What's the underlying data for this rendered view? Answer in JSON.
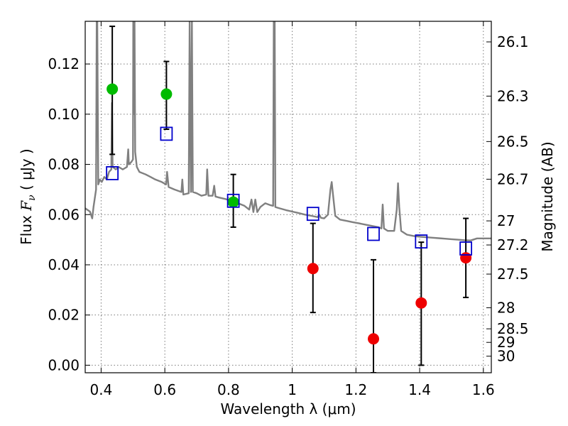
{
  "chart_data": {
    "type": "scatter",
    "title": "",
    "xlabel": "Wavelength  λ (μm)",
    "ylabel_left": {
      "pre": "Flux ",
      "var": "F",
      "sub": "ν",
      "post": "  ( μJy )"
    },
    "ylabel_right": "Magnitude (AB)",
    "xlim": [
      0.35,
      1.625
    ],
    "ylim": [
      -0.003,
      0.137
    ],
    "grid": true,
    "x_ticks": [
      0.4,
      0.6,
      0.8,
      1.0,
      1.2,
      1.4,
      1.6
    ],
    "x_tick_labels": [
      "0.4",
      "0.6",
      "0.8",
      "1",
      "1.2",
      "1.4",
      "1.6"
    ],
    "y_ticks": [
      0.0,
      0.02,
      0.04,
      0.06,
      0.08,
      0.1,
      0.12
    ],
    "y_tick_labels": [
      "0.00",
      "0.02",
      "0.04",
      "0.06",
      "0.08",
      "0.10",
      "0.12"
    ],
    "right_ticks": [
      {
        "label": "26.1",
        "flux": 0.1288
      },
      {
        "label": "26.3",
        "flux": 0.1072
      },
      {
        "label": "26.5",
        "flux": 0.0891
      },
      {
        "label": "26.7",
        "flux": 0.0741
      },
      {
        "label": "27",
        "flux": 0.0575
      },
      {
        "label": "27.2",
        "flux": 0.0479
      },
      {
        "label": "27.5",
        "flux": 0.0363
      },
      {
        "label": "28",
        "flux": 0.0229
      },
      {
        "label": "28.5",
        "flux": 0.0145
      },
      {
        "label": "29",
        "flux": 0.0091
      },
      {
        "label": "30",
        "flux": 0.0036
      }
    ],
    "colors": {
      "spectrum": "#808080",
      "model_square": "#0000cc",
      "detection": "#00bb00",
      "nondetection": "#ee0000",
      "errorbar": "#000000",
      "grid": "#7a7a7a"
    },
    "series": [
      {
        "marker": "circle-green",
        "points": [
          {
            "x": 0.435,
            "y": 0.11,
            "lo": 0.084,
            "hi": 0.135
          },
          {
            "x": 0.605,
            "y": 0.108,
            "lo": 0.094,
            "hi": 0.121
          },
          {
            "x": 0.815,
            "y": 0.065,
            "lo": 0.055,
            "hi": 0.076
          }
        ]
      },
      {
        "marker": "circle-red",
        "points": [
          {
            "x": 1.065,
            "y": 0.0385,
            "lo": 0.021,
            "hi": 0.0565
          },
          {
            "x": 1.255,
            "y": 0.0105,
            "lo": -0.003,
            "hi": 0.042
          },
          {
            "x": 1.405,
            "y": 0.0248,
            "lo": 0.0,
            "hi": 0.049
          },
          {
            "x": 1.545,
            "y": 0.0428,
            "lo": 0.027,
            "hi": 0.0585
          }
        ]
      },
      {
        "marker": "square-blue",
        "points": [
          {
            "x": 0.435,
            "y": 0.0765
          },
          {
            "x": 0.605,
            "y": 0.0922
          },
          {
            "x": 0.815,
            "y": 0.0655
          },
          {
            "x": 1.065,
            "y": 0.0603
          },
          {
            "x": 1.255,
            "y": 0.0523
          },
          {
            "x": 1.405,
            "y": 0.0493
          },
          {
            "x": 1.545,
            "y": 0.0465
          }
        ]
      }
    ],
    "spectrum": [
      [
        0.35,
        0.0625
      ],
      [
        0.365,
        0.0612
      ],
      [
        0.372,
        0.0585
      ],
      [
        0.376,
        0.063
      ],
      [
        0.384,
        0.07
      ],
      [
        0.386,
        0.137
      ],
      [
        0.388,
        0.137
      ],
      [
        0.391,
        0.072
      ],
      [
        0.396,
        0.074
      ],
      [
        0.402,
        0.073
      ],
      [
        0.41,
        0.075
      ],
      [
        0.418,
        0.074
      ],
      [
        0.425,
        0.077
      ],
      [
        0.432,
        0.078
      ],
      [
        0.434,
        0.1045
      ],
      [
        0.436,
        0.079
      ],
      [
        0.446,
        0.078
      ],
      [
        0.455,
        0.079
      ],
      [
        0.468,
        0.078
      ],
      [
        0.481,
        0.079
      ],
      [
        0.485,
        0.086
      ],
      [
        0.487,
        0.08
      ],
      [
        0.495,
        0.081
      ],
      [
        0.5,
        0.082
      ],
      [
        0.501,
        0.137
      ],
      [
        0.503,
        0.1
      ],
      [
        0.505,
        0.137
      ],
      [
        0.507,
        0.085
      ],
      [
        0.512,
        0.079
      ],
      [
        0.52,
        0.077
      ],
      [
        0.54,
        0.076
      ],
      [
        0.555,
        0.075
      ],
      [
        0.57,
        0.074
      ],
      [
        0.59,
        0.073
      ],
      [
        0.604,
        0.072
      ],
      [
        0.607,
        0.077
      ],
      [
        0.612,
        0.071
      ],
      [
        0.63,
        0.07
      ],
      [
        0.652,
        0.069
      ],
      [
        0.655,
        0.074
      ],
      [
        0.658,
        0.068
      ],
      [
        0.675,
        0.0685
      ],
      [
        0.678,
        0.137
      ],
      [
        0.682,
        0.069
      ],
      [
        0.685,
        0.137
      ],
      [
        0.688,
        0.069
      ],
      [
        0.7,
        0.0685
      ],
      [
        0.715,
        0.0675
      ],
      [
        0.73,
        0.068
      ],
      [
        0.733,
        0.078
      ],
      [
        0.737,
        0.0675
      ],
      [
        0.75,
        0.0675
      ],
      [
        0.755,
        0.0715
      ],
      [
        0.759,
        0.0672
      ],
      [
        0.77,
        0.0668
      ],
      [
        0.79,
        0.0662
      ],
      [
        0.81,
        0.0655
      ],
      [
        0.83,
        0.0645
      ],
      [
        0.85,
        0.0635
      ],
      [
        0.865,
        0.062
      ],
      [
        0.872,
        0.066
      ],
      [
        0.878,
        0.061
      ],
      [
        0.884,
        0.066
      ],
      [
        0.89,
        0.061
      ],
      [
        0.9,
        0.063
      ],
      [
        0.915,
        0.0645
      ],
      [
        0.93,
        0.0638
      ],
      [
        0.94,
        0.0635
      ],
      [
        0.942,
        0.137
      ],
      [
        0.945,
        0.137
      ],
      [
        0.947,
        0.063
      ],
      [
        0.96,
        0.0625
      ],
      [
        0.98,
        0.0618
      ],
      [
        1.0,
        0.0612
      ],
      [
        1.02,
        0.0606
      ],
      [
        1.04,
        0.06
      ],
      [
        1.06,
        0.0595
      ],
      [
        1.08,
        0.059
      ],
      [
        1.085,
        0.06
      ],
      [
        1.09,
        0.0587
      ],
      [
        1.1,
        0.0585
      ],
      [
        1.112,
        0.06
      ],
      [
        1.12,
        0.07
      ],
      [
        1.124,
        0.073
      ],
      [
        1.128,
        0.068
      ],
      [
        1.135,
        0.0595
      ],
      [
        1.15,
        0.058
      ],
      [
        1.17,
        0.0575
      ],
      [
        1.19,
        0.057
      ],
      [
        1.21,
        0.0565
      ],
      [
        1.23,
        0.056
      ],
      [
        1.25,
        0.0555
      ],
      [
        1.27,
        0.055
      ],
      [
        1.28,
        0.0545
      ],
      [
        1.284,
        0.064
      ],
      [
        1.288,
        0.0545
      ],
      [
        1.3,
        0.0535
      ],
      [
        1.32,
        0.0535
      ],
      [
        1.328,
        0.062
      ],
      [
        1.332,
        0.0725
      ],
      [
        1.336,
        0.063
      ],
      [
        1.342,
        0.0535
      ],
      [
        1.36,
        0.052
      ],
      [
        1.38,
        0.0515
      ],
      [
        1.4,
        0.0512
      ],
      [
        1.42,
        0.051
      ],
      [
        1.44,
        0.0508
      ],
      [
        1.46,
        0.0506
      ],
      [
        1.48,
        0.0504
      ],
      [
        1.5,
        0.0502
      ],
      [
        1.52,
        0.05
      ],
      [
        1.54,
        0.0498
      ],
      [
        1.56,
        0.0497
      ],
      [
        1.58,
        0.0505
      ],
      [
        1.6,
        0.0505
      ],
      [
        1.625,
        0.0505
      ]
    ]
  }
}
